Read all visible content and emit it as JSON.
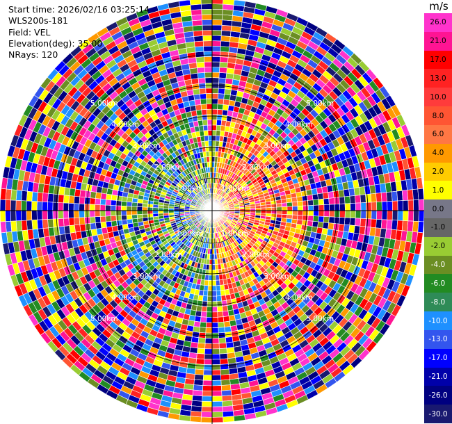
{
  "info": {
    "start_time": "Start time: 2026/02/16 03:25:14",
    "station": "WLS200s-181",
    "field": "Field: VEL",
    "elevation": "Elevation(deg): 35.00",
    "nrays": "NRays: 120"
  },
  "range_rings": [
    {
      "label": "1.00km"
    },
    {
      "label": "2.00km"
    },
    {
      "label": "3.00km"
    },
    {
      "label": "4.00km"
    },
    {
      "label": "5.00km"
    }
  ],
  "colorbar": {
    "unit": "m/s",
    "labels": [
      "26.0",
      "21.0",
      "17.0",
      "13.0",
      "10.0",
      "8.0",
      "6.0",
      "4.0",
      "2.0",
      "1.0",
      "0.0",
      "-1.0",
      "-2.0",
      "-4.0",
      "-6.0",
      "-8.0",
      "-10.0",
      "-13.0",
      "-17.0",
      "-21.0",
      "-26.0",
      "-30.0"
    ],
    "colors": [
      "#ff33cc",
      "#ff1493",
      "#ff0000",
      "#ff2222",
      "#ff3b3b",
      "#ff5533",
      "#ff7744",
      "#ff9900",
      "#ffcc00",
      "#ffff00",
      "#777788",
      "#666666",
      "#99cc33",
      "#6b8e23",
      "#228b22",
      "#2e8b57",
      "#1e90ff",
      "#3355ee",
      "#0000ff",
      "#0000aa",
      "#000080",
      "#191970"
    ]
  }
}
